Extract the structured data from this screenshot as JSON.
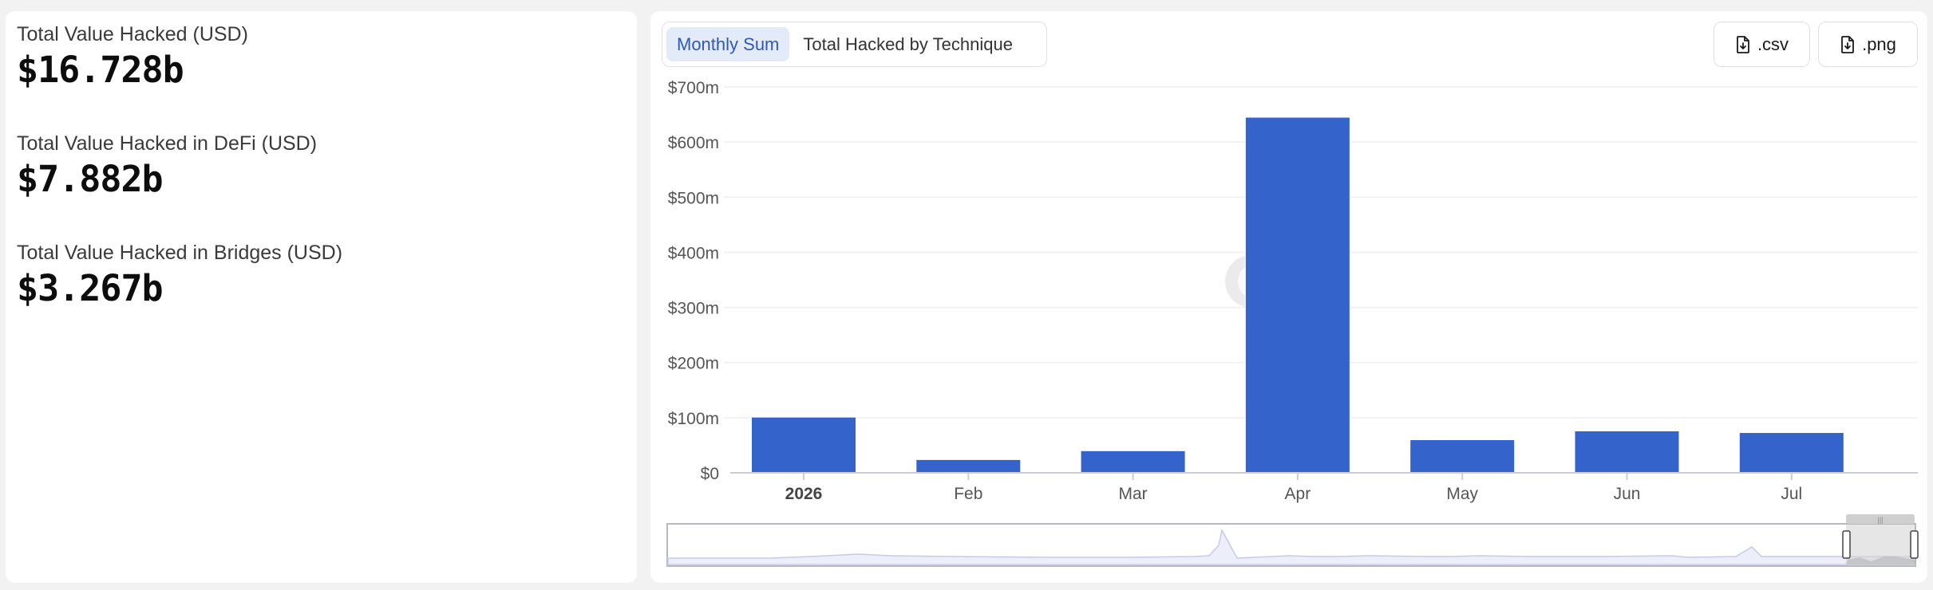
{
  "stats": [
    {
      "label": "Total Value Hacked (USD)",
      "value": "$16.728b"
    },
    {
      "label": "Total Value Hacked in DeFi (USD)",
      "value": "$7.882b"
    },
    {
      "label": "Total Value Hacked in Bridges (USD)",
      "value": "$3.267b"
    }
  ],
  "tabs": [
    {
      "label": "Monthly Sum",
      "active": true
    },
    {
      "label": "Total Hacked by Technique",
      "active": false
    }
  ],
  "download_buttons": {
    "csv": ".csv",
    "png": ".png"
  },
  "icons": {
    "download": "file-download-icon"
  },
  "colors": {
    "bar": "#3563cc",
    "accent": "#2f58b8",
    "tab_active_bg": "#e3eaf8"
  },
  "chart_data": {
    "type": "bar",
    "categories": [
      "2026",
      "Feb",
      "Mar",
      "Apr",
      "May",
      "Jun",
      "Jul"
    ],
    "values": [
      101,
      24,
      40,
      645,
      60,
      76,
      73
    ],
    "value_unit": "millions USD",
    "y_ticks": [
      "$0",
      "$100m",
      "$200m",
      "$300m",
      "$400m",
      "$500m",
      "$600m",
      "$700m"
    ],
    "ylim": [
      0,
      700
    ],
    "title": "",
    "xlabel": "",
    "ylabel": "",
    "grid": true,
    "legend": "none",
    "has_zoom_slider": true
  }
}
